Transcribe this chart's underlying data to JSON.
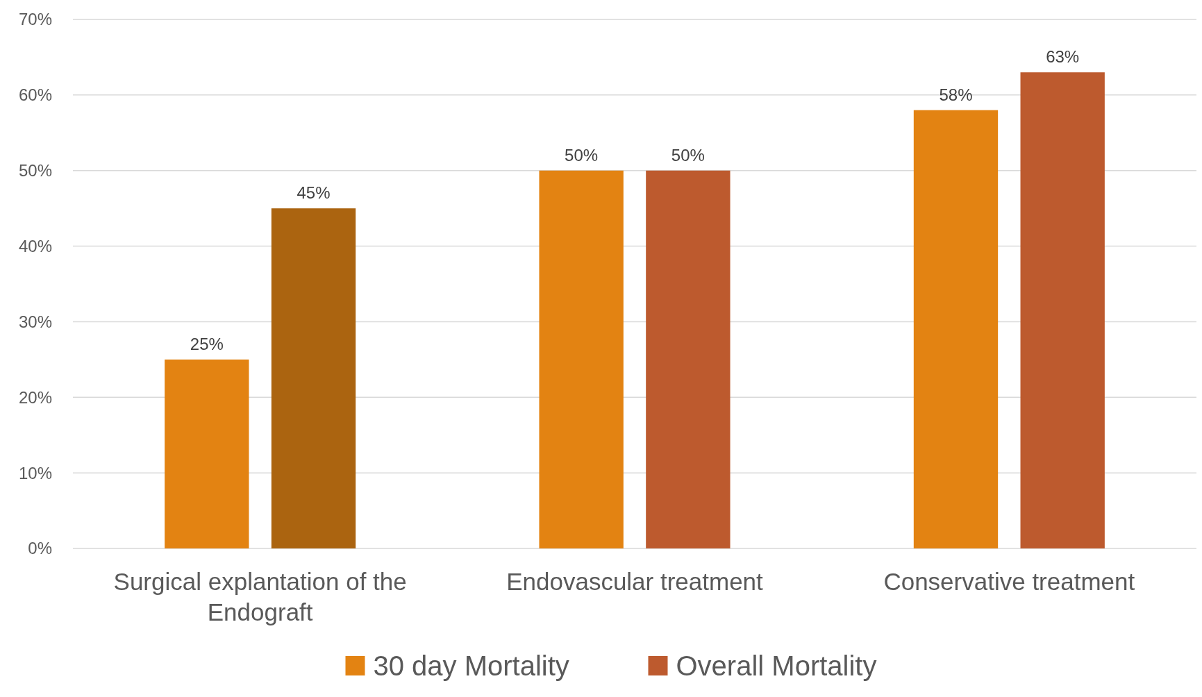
{
  "chart_data": {
    "type": "bar",
    "categories": [
      "Surgical explantation of the Endograft",
      "Endovascular treatment",
      "Conservative treatment"
    ],
    "series": [
      {
        "name": "30 day Mortality",
        "color": "#e38312",
        "values": [
          25,
          50,
          58
        ],
        "value_labels": [
          "25%",
          "50%",
          "58%"
        ]
      },
      {
        "name": "Overall Mortality",
        "color": "#bd5a2e",
        "colors": [
          "#ab6410",
          "#bd5a2e",
          "#bd5a2e"
        ],
        "values": [
          45,
          50,
          63
        ],
        "value_labels": [
          "45%",
          "50%",
          "63%"
        ]
      }
    ],
    "ylim": [
      0,
      70
    ],
    "yticks": [
      {
        "value": 0,
        "label": "0%"
      },
      {
        "value": 10,
        "label": "10%"
      },
      {
        "value": 20,
        "label": "20%"
      },
      {
        "value": 30,
        "label": "30%"
      },
      {
        "value": 40,
        "label": "40%"
      },
      {
        "value": 50,
        "label": "50%"
      },
      {
        "value": 60,
        "label": "60%"
      },
      {
        "value": 70,
        "label": "70%"
      }
    ],
    "grid": "y",
    "legend": "bottom"
  }
}
